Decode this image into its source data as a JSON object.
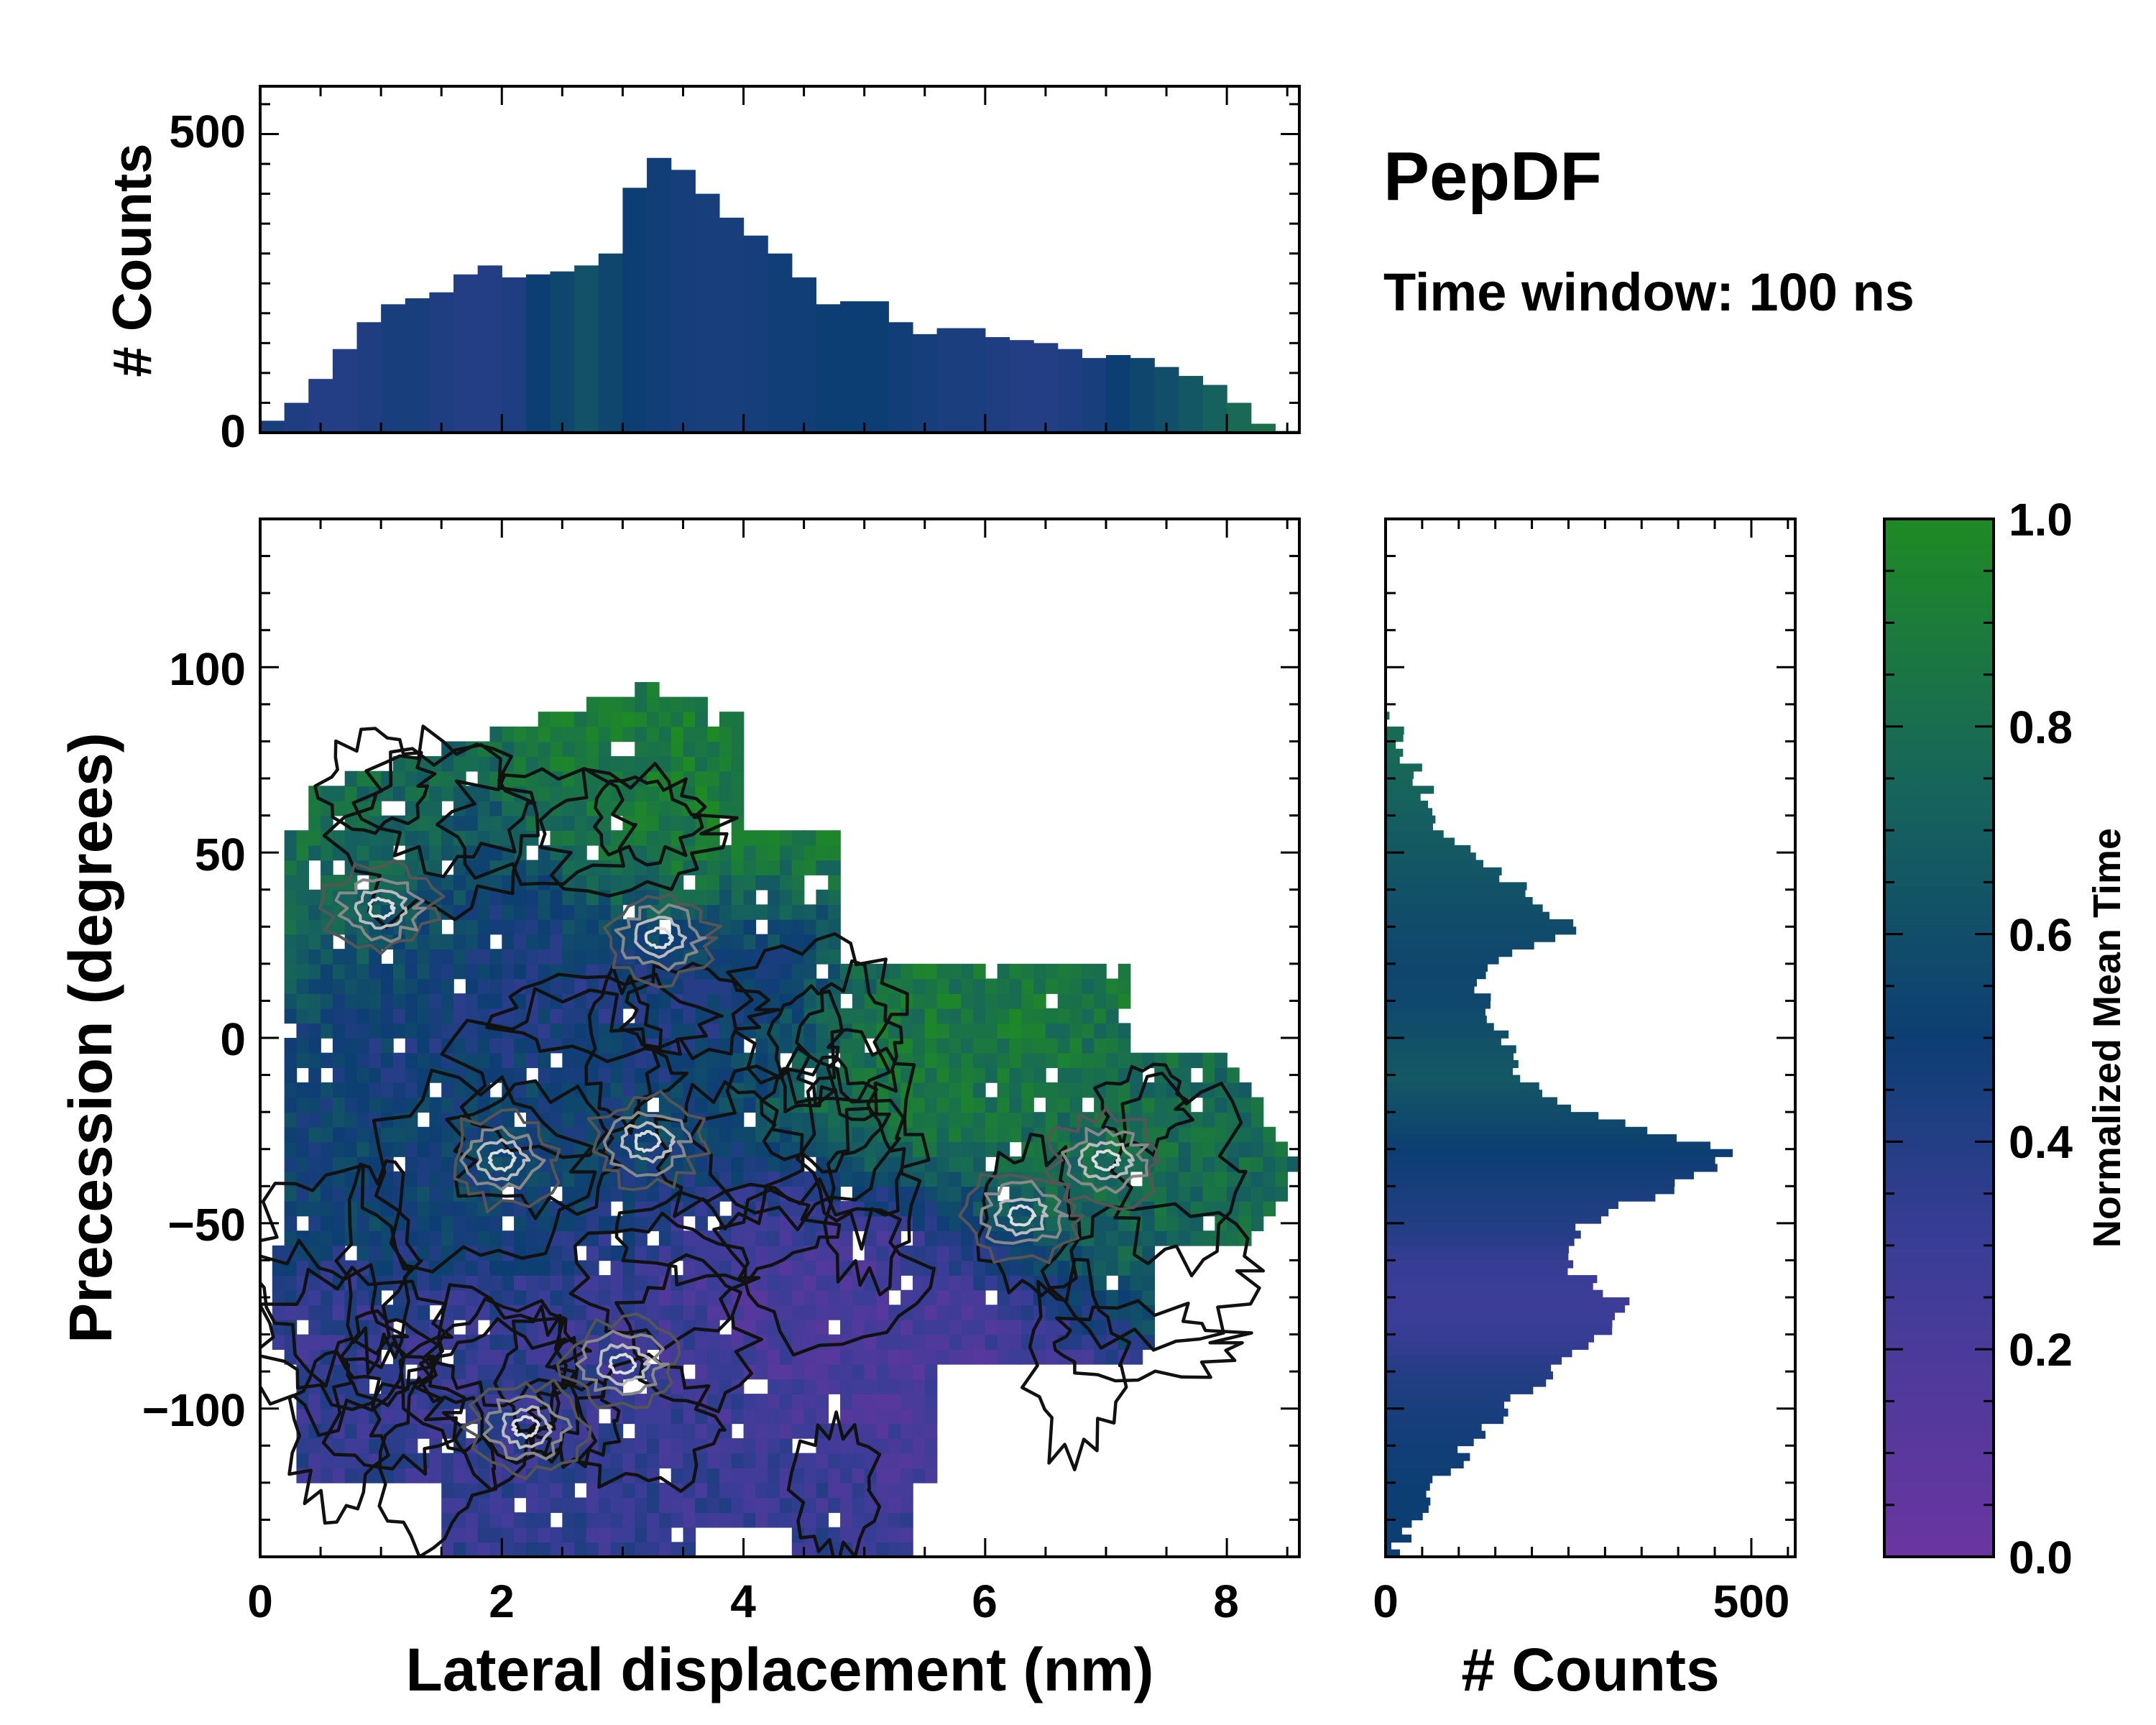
{
  "header": {
    "title": "PepDF",
    "subtitle": "Time window: 100 ns"
  },
  "colors": {
    "low": "#6a35a0",
    "mid": "#0d3e73",
    "high": "#1f8a24",
    "contour_dark": "#111111",
    "contour_light": "#dddddd"
  },
  "chart_data": [
    {
      "id": "top-histogram",
      "type": "bar",
      "title": "",
      "xlabel": "",
      "ylabel": "# Counts",
      "xlim": [
        0,
        8.6
      ],
      "ylim": [
        0,
        580
      ],
      "yticks": [
        0,
        500
      ],
      "ytick_labels": [
        "0",
        "500"
      ],
      "x": [
        0.1,
        0.3,
        0.5,
        0.7,
        0.9,
        1.1,
        1.3,
        1.5,
        1.7,
        1.9,
        2.1,
        2.3,
        2.5,
        2.7,
        2.9,
        3.1,
        3.3,
        3.5,
        3.7,
        3.9,
        4.1,
        4.3,
        4.5,
        4.7,
        4.9,
        5.1,
        5.3,
        5.5,
        5.7,
        5.9,
        6.1,
        6.3,
        6.5,
        6.7,
        6.9,
        7.1,
        7.3,
        7.5,
        7.7,
        7.9,
        8.1,
        8.3,
        8.5
      ],
      "values": [
        20,
        50,
        90,
        140,
        185,
        215,
        225,
        235,
        265,
        280,
        260,
        265,
        270,
        280,
        300,
        410,
        460,
        440,
        400,
        360,
        330,
        300,
        260,
        215,
        220,
        220,
        185,
        165,
        175,
        175,
        160,
        155,
        150,
        140,
        125,
        130,
        125,
        110,
        95,
        80,
        50,
        15,
        3
      ],
      "time_values": [
        0.45,
        0.42,
        0.4,
        0.4,
        0.42,
        0.45,
        0.45,
        0.42,
        0.4,
        0.4,
        0.42,
        0.5,
        0.55,
        0.62,
        0.55,
        0.5,
        0.48,
        0.46,
        0.45,
        0.45,
        0.46,
        0.48,
        0.48,
        0.5,
        0.5,
        0.5,
        0.48,
        0.46,
        0.44,
        0.44,
        0.42,
        0.4,
        0.4,
        0.42,
        0.45,
        0.5,
        0.55,
        0.6,
        0.65,
        0.72,
        0.78,
        0.82,
        0.8
      ]
    },
    {
      "id": "right-histogram",
      "type": "bar",
      "orientation": "horizontal",
      "xlabel": "# Counts",
      "ylabel": "",
      "xlim": [
        0,
        560
      ],
      "ylim": [
        -140,
        140
      ],
      "xticks": [
        0,
        500
      ],
      "xtick_labels": [
        "0",
        "500"
      ],
      "y": [
        90,
        80,
        70,
        60,
        50,
        40,
        30,
        20,
        10,
        0,
        -10,
        -20,
        -30,
        -40,
        -50,
        -60,
        -70,
        -80,
        -90,
        -100,
        -110,
        -120,
        -130,
        -140
      ],
      "values": [
        5,
        20,
        50,
        70,
        110,
        200,
        260,
        130,
        140,
        170,
        190,
        280,
        480,
        380,
        260,
        250,
        320,
        290,
        220,
        160,
        110,
        70,
        30,
        10
      ],
      "time_values": [
        0.8,
        0.78,
        0.74,
        0.7,
        0.66,
        0.62,
        0.58,
        0.55,
        0.56,
        0.62,
        0.66,
        0.58,
        0.5,
        0.45,
        0.4,
        0.32,
        0.28,
        0.32,
        0.4,
        0.45,
        0.48,
        0.5,
        0.5,
        0.5
      ]
    },
    {
      "id": "main-heatmap",
      "type": "heatmap",
      "xlabel": "Lateral displacement (nm)",
      "ylabel": "Precession (degrees)",
      "xlim": [
        0,
        8.6
      ],
      "ylim": [
        -140,
        140
      ],
      "xticks": [
        0,
        2,
        4,
        6,
        8
      ],
      "xtick_labels": [
        "0",
        "2",
        "4",
        "6",
        "8"
      ],
      "yticks": [
        100,
        50,
        0,
        -50,
        -100
      ],
      "ytick_labels": [
        "100",
        "50",
        "0",
        "−50",
        "−100"
      ],
      "regions": [
        {
          "x": 0.9,
          "y": 40,
          "value": 0.85,
          "rx": 0.8,
          "ry": 25
        },
        {
          "x": 3.4,
          "y": 60,
          "value": 0.9,
          "rx": 1.0,
          "ry": 30
        },
        {
          "x": 1.6,
          "y": 20,
          "value": 0.4,
          "rx": 1.0,
          "ry": 30
        },
        {
          "x": 5.5,
          "y": -10,
          "value": 0.88,
          "rx": 1.2,
          "ry": 25
        },
        {
          "x": 7.0,
          "y": -35,
          "value": 0.78,
          "rx": 1.2,
          "ry": 25
        },
        {
          "x": 2.5,
          "y": -30,
          "value": 0.55,
          "rx": 1.5,
          "ry": 30
        },
        {
          "x": 4.5,
          "y": -65,
          "value": 0.2,
          "rx": 1.6,
          "ry": 25
        },
        {
          "x": 2.0,
          "y": -95,
          "value": 0.32,
          "rx": 1.5,
          "ry": 25
        },
        {
          "x": 3.5,
          "y": 10,
          "value": 0.4,
          "rx": 1.0,
          "ry": 25
        }
      ],
      "contour_hotspots": [
        {
          "x": 3.3,
          "y": 27
        },
        {
          "x": 1.0,
          "y": 35
        },
        {
          "x": 2.0,
          "y": -33
        },
        {
          "x": 3.2,
          "y": -28
        },
        {
          "x": 6.3,
          "y": -48
        },
        {
          "x": 7.0,
          "y": -33
        },
        {
          "x": 2.2,
          "y": -105
        },
        {
          "x": 3.0,
          "y": -88
        }
      ]
    },
    {
      "id": "colorbar",
      "type": "colorbar",
      "label": "Normalized Mean Time",
      "range": [
        0,
        1
      ],
      "ticks": [
        1.0,
        0.8,
        0.6,
        0.4,
        0.2,
        0.0
      ],
      "tick_labels": [
        "1.0",
        "0.8",
        "0.6",
        "0.4",
        "0.2",
        "0.0"
      ]
    }
  ]
}
